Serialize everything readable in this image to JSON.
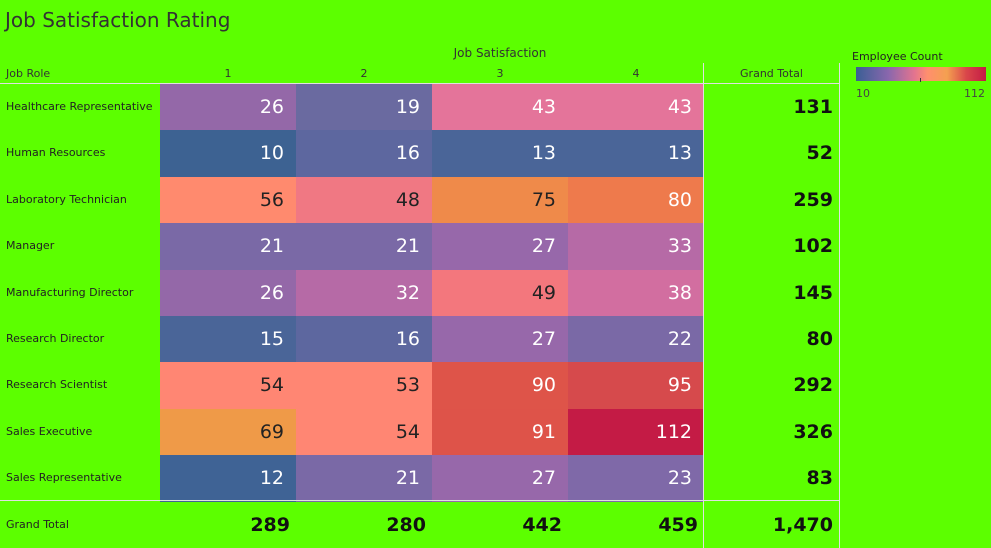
{
  "title": "Job Satisfaction Rating",
  "legend": {
    "title": "Employee Count",
    "min": "10",
    "max": "112"
  },
  "chart_data": {
    "type": "heatmap",
    "title": "Job Satisfaction Rating",
    "column_group_label": "Job Satisfaction",
    "row_header_label": "Job Role",
    "columns": [
      "1",
      "2",
      "3",
      "4"
    ],
    "grand_total_label": "Grand Total",
    "color_scale": {
      "name": "Employee Count",
      "min": 10,
      "max": 112
    },
    "rows": [
      {
        "label": "Healthcare Representative",
        "values": [
          26,
          19,
          43,
          43
        ],
        "total": "131"
      },
      {
        "label": "Human Resources",
        "values": [
          10,
          16,
          13,
          13
        ],
        "total": "52"
      },
      {
        "label": "Laboratory Technician",
        "values": [
          56,
          48,
          75,
          80
        ],
        "total": "259"
      },
      {
        "label": "Manager",
        "values": [
          21,
          21,
          27,
          33
        ],
        "total": "102"
      },
      {
        "label": "Manufacturing Director",
        "values": [
          26,
          32,
          49,
          38
        ],
        "total": "145"
      },
      {
        "label": "Research Director",
        "values": [
          15,
          16,
          27,
          22
        ],
        "total": "80"
      },
      {
        "label": "Research Scientist",
        "values": [
          54,
          53,
          90,
          95
        ],
        "total": "292"
      },
      {
        "label": "Sales Executive",
        "values": [
          69,
          54,
          91,
          112
        ],
        "total": "326"
      },
      {
        "label": "Sales Representative",
        "values": [
          12,
          21,
          27,
          23
        ],
        "total": "83"
      }
    ],
    "column_totals": [
      "289",
      "280",
      "442",
      "459"
    ],
    "grand_total": "1,470",
    "cell_colors": [
      [
        "#9468a8",
        "#6a6aa0",
        "#e4749a",
        "#e4749a"
      ],
      [
        "#3d6292",
        "#5d679f",
        "#4a6598",
        "#4a6598"
      ],
      [
        "#ff8a6e",
        "#f07883",
        "#ef8a4a",
        "#ee7a4c"
      ],
      [
        "#7a69a6",
        "#7a69a6",
        "#9768aa",
        "#b66aa6"
      ],
      [
        "#9468a8",
        "#b66aa6",
        "#f3777d",
        "#d26ea0"
      ],
      [
        "#4a6598",
        "#5d679f",
        "#9768aa",
        "#7a69a6"
      ],
      [
        "#ff8673",
        "#ff8673",
        "#de5449",
        "#d64a4c"
      ],
      [
        "#ef9a48",
        "#ff8673",
        "#de5349",
        "#c41b45"
      ],
      [
        "#3f6395",
        "#7a69a6",
        "#9768aa",
        "#7f69a8"
      ]
    ],
    "text_colors": [
      [
        "#ffffff",
        "#ffffff",
        "#ffffff",
        "#ffffff"
      ],
      [
        "#ffffff",
        "#ffffff",
        "#ffffff",
        "#ffffff"
      ],
      [
        "#222222",
        "#222222",
        "#222222",
        "#ffffff"
      ],
      [
        "#ffffff",
        "#ffffff",
        "#ffffff",
        "#ffffff"
      ],
      [
        "#ffffff",
        "#ffffff",
        "#222222",
        "#ffffff"
      ],
      [
        "#ffffff",
        "#ffffff",
        "#ffffff",
        "#ffffff"
      ],
      [
        "#222222",
        "#222222",
        "#ffffff",
        "#ffffff"
      ],
      [
        "#222222",
        "#222222",
        "#ffffff",
        "#ffffff"
      ],
      [
        "#ffffff",
        "#ffffff",
        "#ffffff",
        "#ffffff"
      ]
    ]
  }
}
